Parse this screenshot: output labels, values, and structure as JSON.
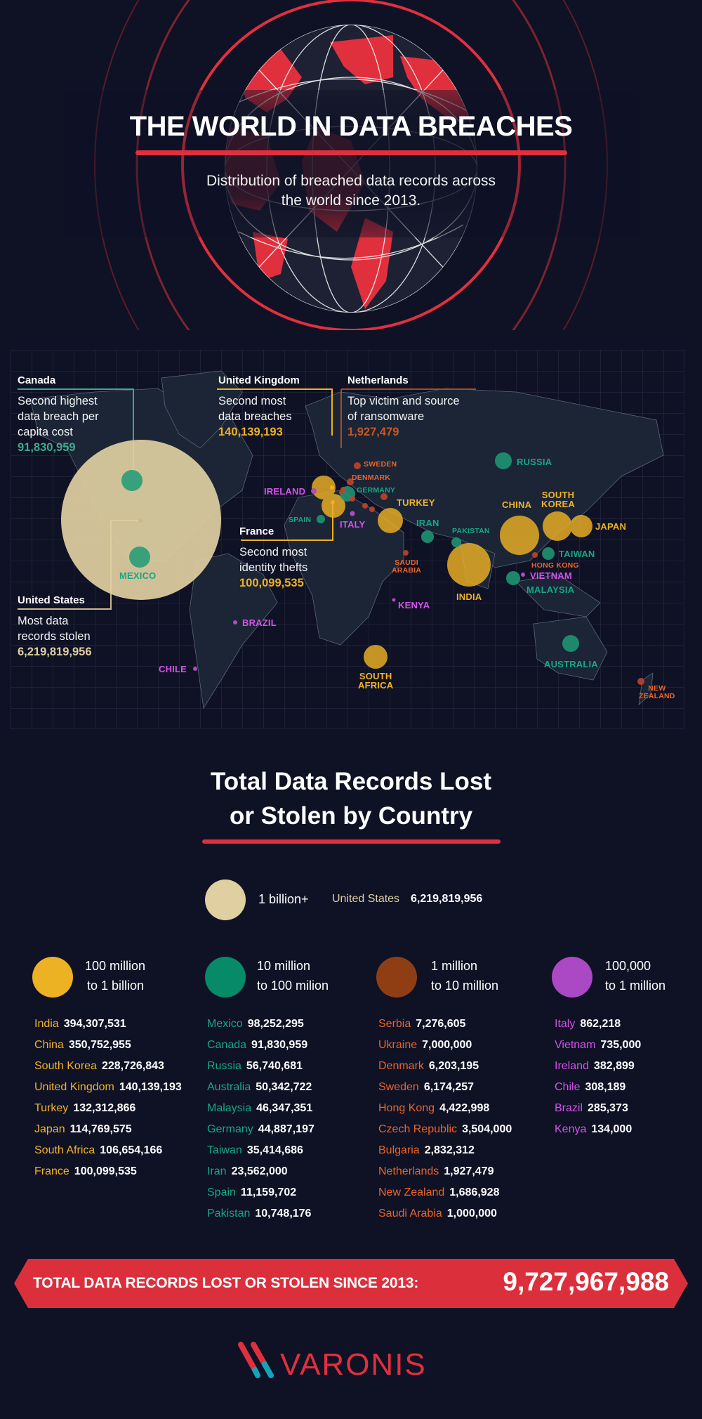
{
  "header": {
    "title": "THE WORLD IN DATA BREACHES",
    "subtitle_line1": "Distribution of breached data records across",
    "subtitle_line2": "the world since 2013."
  },
  "colors": {
    "background": "#0f1125",
    "accent_red": "#e0303e",
    "tier_1b_plus": "#dfcfa1",
    "tier_100m_1b": "#edb124",
    "tier_10m_100m": "#078a68",
    "tier_1m_10m": "#8f3e14",
    "tier_100k_1m": "#ab48c3",
    "label_gold": "#f0b429",
    "label_green": "#18a783",
    "label_orange": "#e8652a",
    "label_purple": "#d552ea"
  },
  "map": {
    "callouts": [
      {
        "country": "Canada",
        "line1": "Second highest",
        "line2": "data breach per",
        "line3": "capita cost",
        "value": "91,830,959"
      },
      {
        "country": "United Kingdom",
        "line1": "Second most",
        "line2": "data breaches",
        "value": "140,139,193"
      },
      {
        "country": "Netherlands",
        "line1": "Top victim and source",
        "line2": "of ransomware",
        "value": "1,927,479"
      },
      {
        "country": "France",
        "line1": "Second most",
        "line2": "identity thefts",
        "value": "100,099,535"
      },
      {
        "country": "United States",
        "line1": "Most data",
        "line2": "records stolen",
        "value": "6,219,819,956"
      }
    ],
    "labels": {
      "mexico": "MEXICO",
      "ireland": "IRELAND",
      "spain": "SPAIN",
      "italy": "ITALY",
      "sweden": "SWEDEN",
      "denmark": "DENMARK",
      "germany": "GERMANY",
      "turkey": "TURKEY",
      "iran": "IRAN",
      "pakistan": "PAKISTAN",
      "russia": "RUSSIA",
      "china": "CHINA",
      "south_korea_1": "SOUTH",
      "south_korea_2": "KOREA",
      "japan": "JAPAN",
      "taiwan": "TAIWAN",
      "hong_kong": "HONG KONG",
      "vietnam": "VIETNAM",
      "malaysia": "MALAYSIA",
      "india": "INDIA",
      "saudi_1": "SAUDI",
      "saudi_2": "ARABIA",
      "kenya": "KENYA",
      "brazil": "BRAZIL",
      "chile": "CHILE",
      "south_africa_1": "SOUTH",
      "south_africa_2": "AFRICA",
      "australia": "AUSTRALIA",
      "new_zealand_1": "NEW",
      "new_zealand_2": "ZEALAND"
    }
  },
  "section": {
    "title_line1": "Total Data Records Lost",
    "title_line2": "or Stolen by Country"
  },
  "legend": {
    "top": {
      "label": "1 billion+",
      "country": "United States",
      "value": "6,219,819,956"
    },
    "tiers": [
      {
        "line1": "100 million",
        "line2": "to 1 billion"
      },
      {
        "line1": "10 million",
        "line2": "to 100 milion"
      },
      {
        "line1": "1 million",
        "line2": "to 10 million"
      },
      {
        "line1": "100,000",
        "line2": "to 1 million"
      }
    ]
  },
  "chart_data": {
    "type": "bubble-map",
    "title": "THE WORLD IN DATA BREACHES",
    "subtitle": "Distribution of breached data records across the world since 2013.",
    "series": [
      {
        "name": "1 billion+",
        "color": "#dfcfa1",
        "data": [
          {
            "country": "United States",
            "value": 6219819956
          }
        ]
      },
      {
        "name": "100 million to 1 billion",
        "color": "#edb124",
        "data": [
          {
            "country": "India",
            "value": 394307531
          },
          {
            "country": "China",
            "value": 350752955
          },
          {
            "country": "South Korea",
            "value": 228726843
          },
          {
            "country": "United Kingdom",
            "value": 140139193
          },
          {
            "country": "Turkey",
            "value": 132312866
          },
          {
            "country": "Japan",
            "value": 114769575
          },
          {
            "country": "South Africa",
            "value": 106654166
          },
          {
            "country": "France",
            "value": 100099535
          }
        ]
      },
      {
        "name": "10 million to 100 milion",
        "color": "#078a68",
        "data": [
          {
            "country": "Mexico",
            "value": 98252295
          },
          {
            "country": "Canada",
            "value": 91830959
          },
          {
            "country": "Russia",
            "value": 56740681
          },
          {
            "country": "Australia",
            "value": 50342722
          },
          {
            "country": "Malaysia",
            "value": 46347351
          },
          {
            "country": "Germany",
            "value": 44887197
          },
          {
            "country": "Taiwan",
            "value": 35414686
          },
          {
            "country": "Iran",
            "value": 23562000
          },
          {
            "country": "Spain",
            "value": 11159702
          },
          {
            "country": "Pakistan",
            "value": 10748176
          }
        ]
      },
      {
        "name": "1 million to 10 million",
        "color": "#8f3e14",
        "data": [
          {
            "country": "Serbia",
            "value": 7276605
          },
          {
            "country": "Ukraine",
            "value": 7000000
          },
          {
            "country": "Denmark",
            "value": 6203195
          },
          {
            "country": "Sweden",
            "value": 6174257
          },
          {
            "country": "Hong Kong",
            "value": 4422998
          },
          {
            "country": "Czech Republic",
            "value": 3504000
          },
          {
            "country": "Bulgaria",
            "value": 2832312
          },
          {
            "country": "Netherlands",
            "value": 1927479
          },
          {
            "country": "New Zealand",
            "value": 1686928
          },
          {
            "country": "Saudi Arabia",
            "value": 1000000
          }
        ]
      },
      {
        "name": "100,000 to 1 million",
        "color": "#ab48c3",
        "data": [
          {
            "country": "Italy",
            "value": 862218
          },
          {
            "country": "Vietnam",
            "value": 735000
          },
          {
            "country": "Ireland",
            "value": 382899
          },
          {
            "country": "Chile",
            "value": 308189
          },
          {
            "country": "Brazil",
            "value": 285373
          },
          {
            "country": "Kenya",
            "value": 134000
          }
        ]
      }
    ],
    "total_label": "TOTAL DATA RECORDS LOST OR STOLEN SINCE 2013:",
    "total": 9727967988
  },
  "lists": {
    "col1": [
      {
        "name": "India",
        "value": "394,307,531"
      },
      {
        "name": "China",
        "value": "350,752,955"
      },
      {
        "name": "South Korea",
        "value": "228,726,843"
      },
      {
        "name": "United Kingdom",
        "value": "140,139,193"
      },
      {
        "name": "Turkey",
        "value": "132,312,866"
      },
      {
        "name": "Japan",
        "value": "114,769,575"
      },
      {
        "name": "South Africa",
        "value": "106,654,166"
      },
      {
        "name": "France",
        "value": "100,099,535"
      }
    ],
    "col2": [
      {
        "name": "Mexico",
        "value": "98,252,295"
      },
      {
        "name": "Canada",
        "value": "91,830,959"
      },
      {
        "name": "Russia",
        "value": "56,740,681"
      },
      {
        "name": "Australia",
        "value": "50,342,722"
      },
      {
        "name": "Malaysia",
        "value": "46,347,351"
      },
      {
        "name": "Germany",
        "value": "44,887,197"
      },
      {
        "name": "Taiwan",
        "value": "35,414,686"
      },
      {
        "name": "Iran",
        "value": "23,562,000"
      },
      {
        "name": "Spain",
        "value": "11,159,702"
      },
      {
        "name": "Pakistan",
        "value": "10,748,176"
      }
    ],
    "col3": [
      {
        "name": "Serbia",
        "value": "7,276,605"
      },
      {
        "name": "Ukraine",
        "value": "7,000,000"
      },
      {
        "name": "Denmark",
        "value": "6,203,195"
      },
      {
        "name": "Sweden",
        "value": "6,174,257"
      },
      {
        "name": "Hong Kong",
        "value": "4,422,998"
      },
      {
        "name": "Czech Republic",
        "value": "3,504,000"
      },
      {
        "name": "Bulgaria",
        "value": "2,832,312"
      },
      {
        "name": "Netherlands",
        "value": "1,927,479"
      },
      {
        "name": "New Zealand",
        "value": "1,686,928"
      },
      {
        "name": "Saudi Arabia",
        "value": "1,000,000"
      }
    ],
    "col4": [
      {
        "name": "Italy",
        "value": "862,218"
      },
      {
        "name": "Vietnam",
        "value": "735,000"
      },
      {
        "name": "Ireland",
        "value": "382,899"
      },
      {
        "name": "Chile",
        "value": "308,189"
      },
      {
        "name": "Brazil",
        "value": "285,373"
      },
      {
        "name": "Kenya",
        "value": "134,000"
      }
    ]
  },
  "banner": {
    "label": "TOTAL DATA RECORDS LOST OR STOLEN SINCE 2013:",
    "value": "9,727,967,988"
  },
  "logo": {
    "text": "VARONIS"
  }
}
